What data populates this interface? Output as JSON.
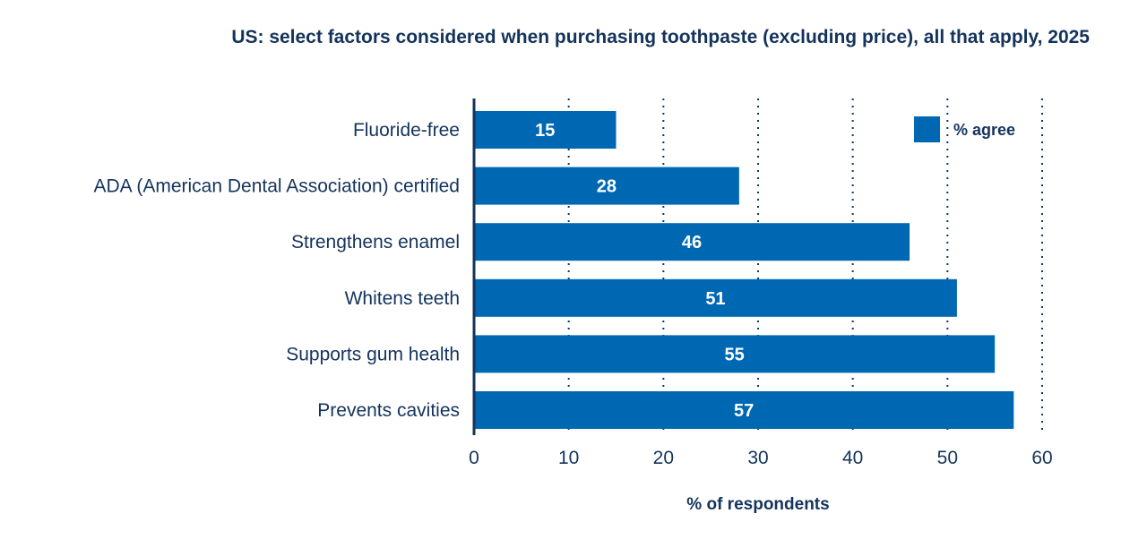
{
  "chart_data": {
    "type": "bar",
    "orientation": "horizontal",
    "title": "US: select factors considered when purchasing toothpaste (excluding price), all that apply, 2025",
    "xlabel": "% of respondents",
    "ylabel": "",
    "categories": [
      "Fluoride-free",
      "ADA (American Dental Association) certified",
      "Strengthens enamel",
      "Whitens teeth",
      "Supports gum health",
      "Prevents cavities"
    ],
    "series": [
      {
        "name": "% agree",
        "values": [
          15,
          28,
          46,
          51,
          55,
          57
        ]
      }
    ],
    "data_labels": [
      "15",
      "28",
      "46",
      "51",
      "55",
      "57"
    ],
    "xlim": [
      0,
      60
    ],
    "xticks": [
      "0",
      "10",
      "20",
      "30",
      "40",
      "50",
      "60"
    ],
    "grid": "vertical-dotted",
    "legend_position": "top-right",
    "colors": {
      "bar": "#0068b3",
      "text": "#14335c",
      "grid": "#14335c",
      "axis": "#14335c"
    }
  }
}
